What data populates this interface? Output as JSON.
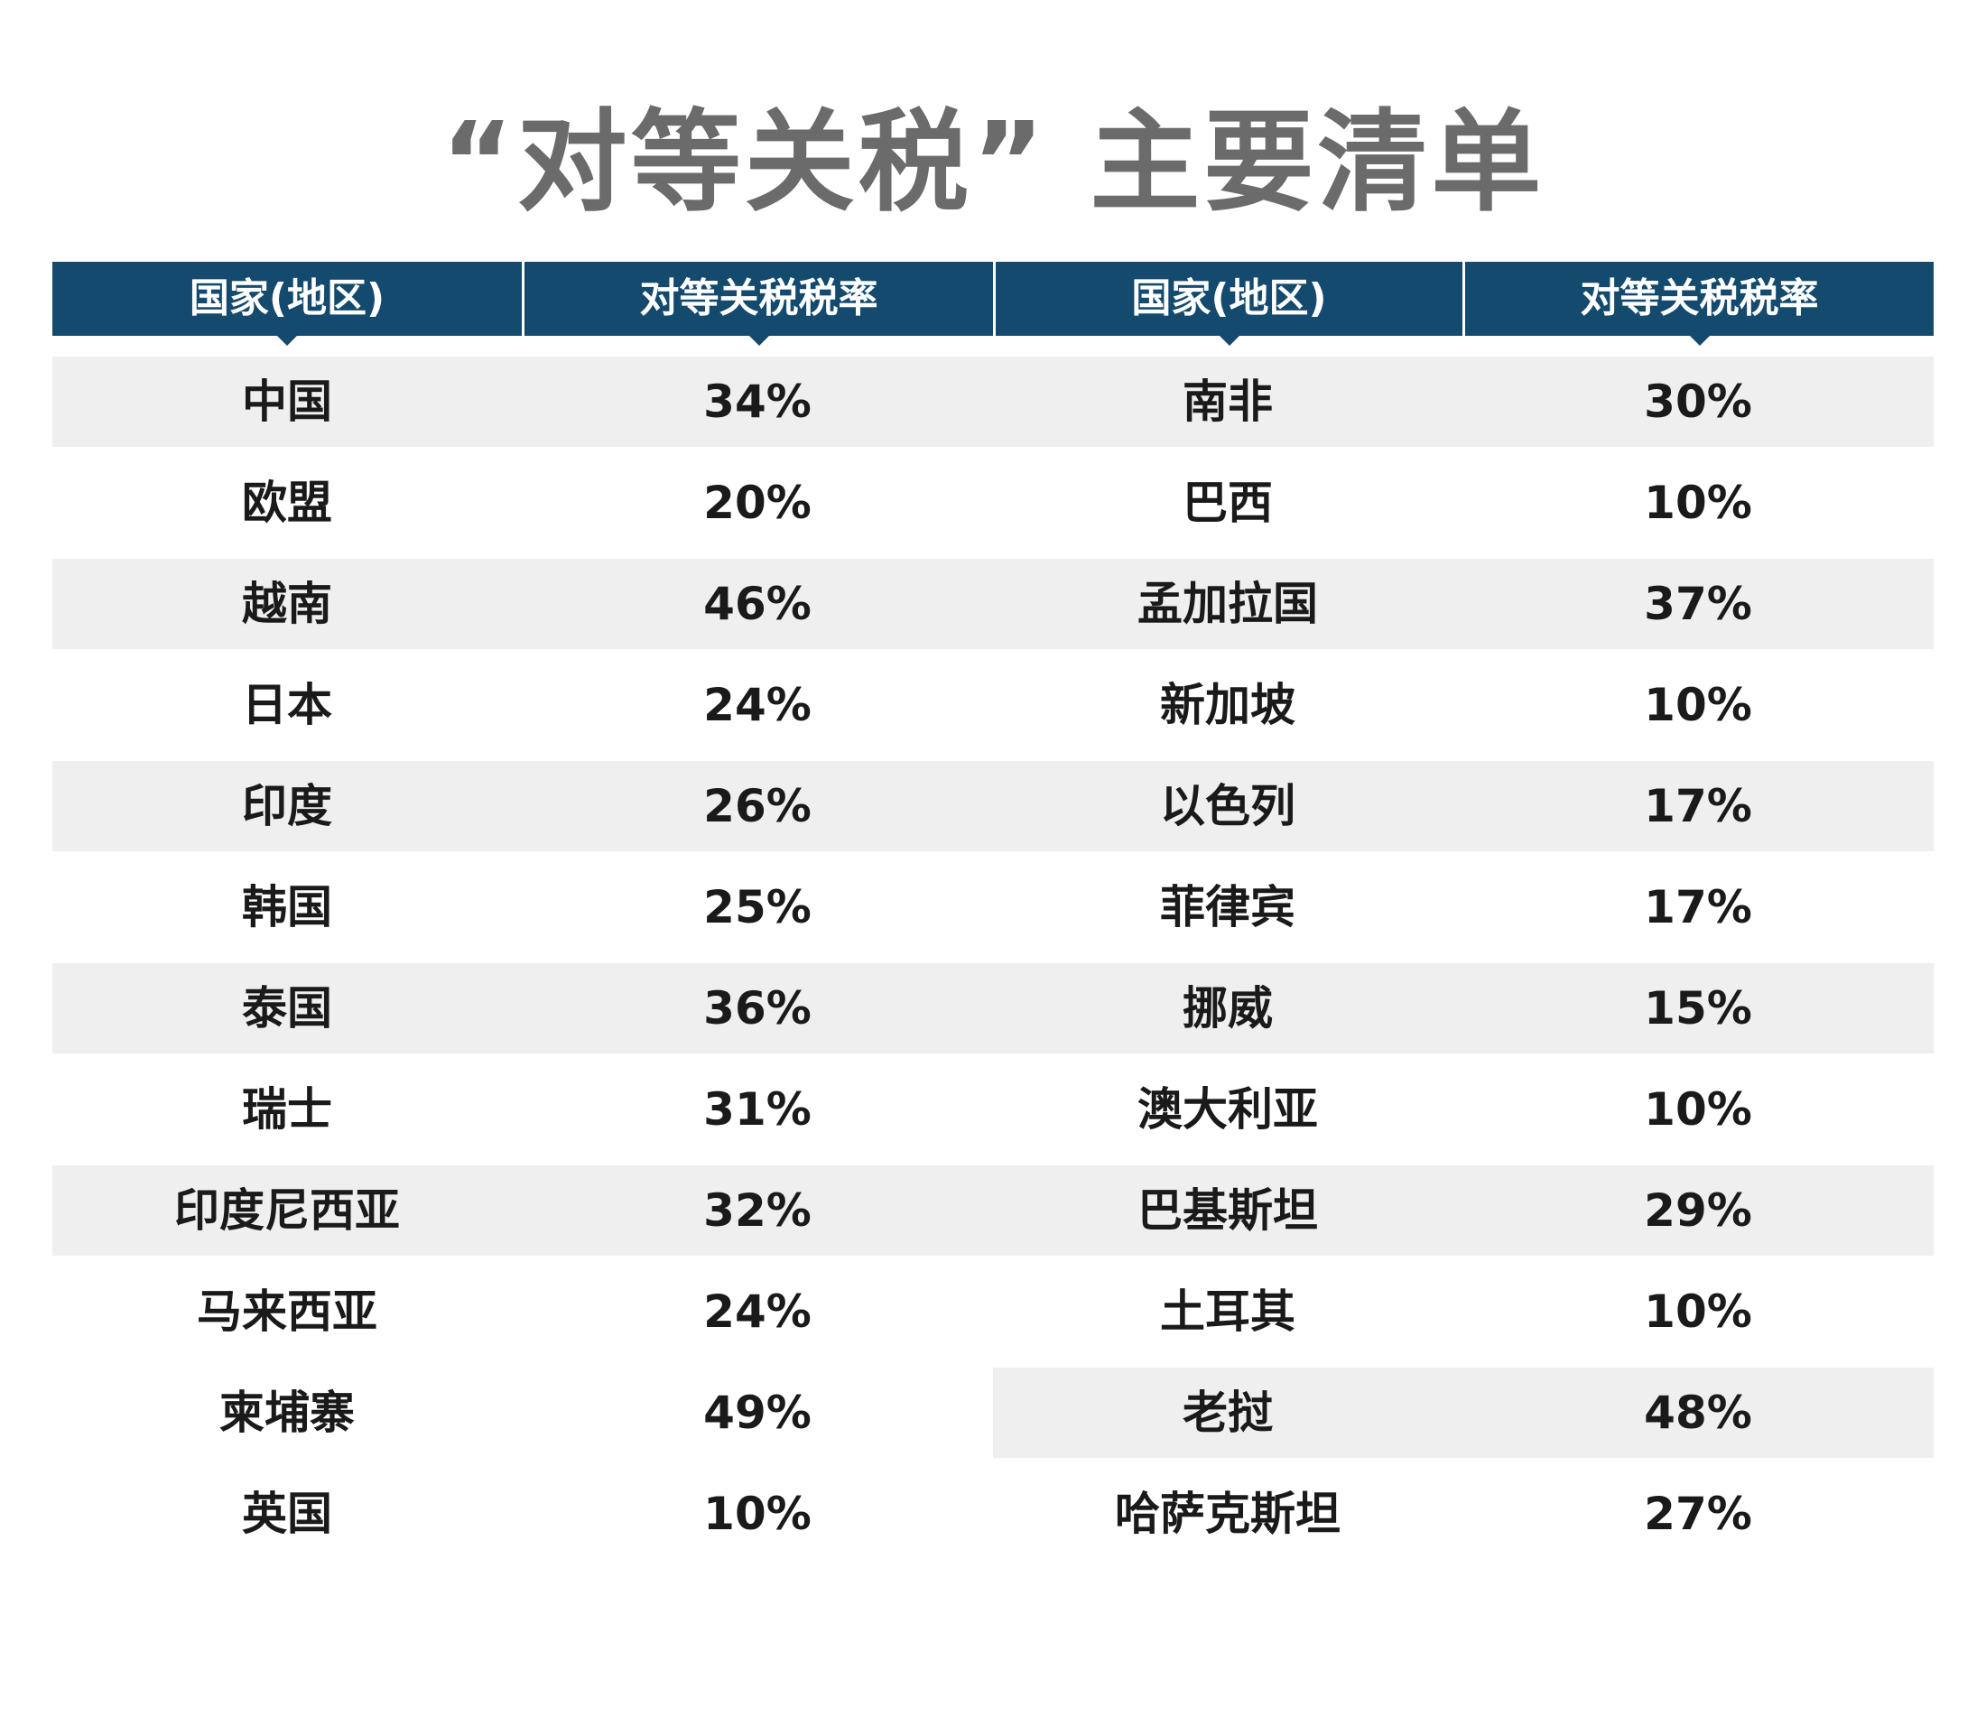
{
  "title": "“对等关税” 主要清单",
  "table": {
    "headers": [
      "国家(地区)",
      "对等关税税率",
      "国家(地区)",
      "对等关税税率"
    ],
    "rows": [
      [
        "中国",
        "34%",
        "南非",
        "30%"
      ],
      [
        "欧盟",
        "20%",
        "巴西",
        "10%"
      ],
      [
        "越南",
        "46%",
        "孟加拉国",
        "37%"
      ],
      [
        "日本",
        "24%",
        "新加坡",
        "10%"
      ],
      [
        "印度",
        "26%",
        "以色列",
        "17%"
      ],
      [
        "韩国",
        "25%",
        "菲律宾",
        "17%"
      ],
      [
        "泰国",
        "36%",
        "挪威",
        "15%"
      ],
      [
        "瑞士",
        "31%",
        "澳大利亚",
        "10%"
      ],
      [
        "印度尼西亚",
        "32%",
        "巴基斯坦",
        "29%"
      ],
      [
        "马来西亚",
        "24%",
        "土耳其",
        "10%"
      ],
      [
        "柬埔寨",
        "49%",
        "老挝",
        "48%"
      ],
      [
        "英国",
        "10%",
        "哈萨克斯坦",
        "27%"
      ]
    ]
  },
  "colors": {
    "header_bg": "#134a6e",
    "header_text": "#ffffff",
    "row_shade": "#efefef",
    "title_text": "#6b6b6b",
    "body_text": "#1a1a1a"
  }
}
